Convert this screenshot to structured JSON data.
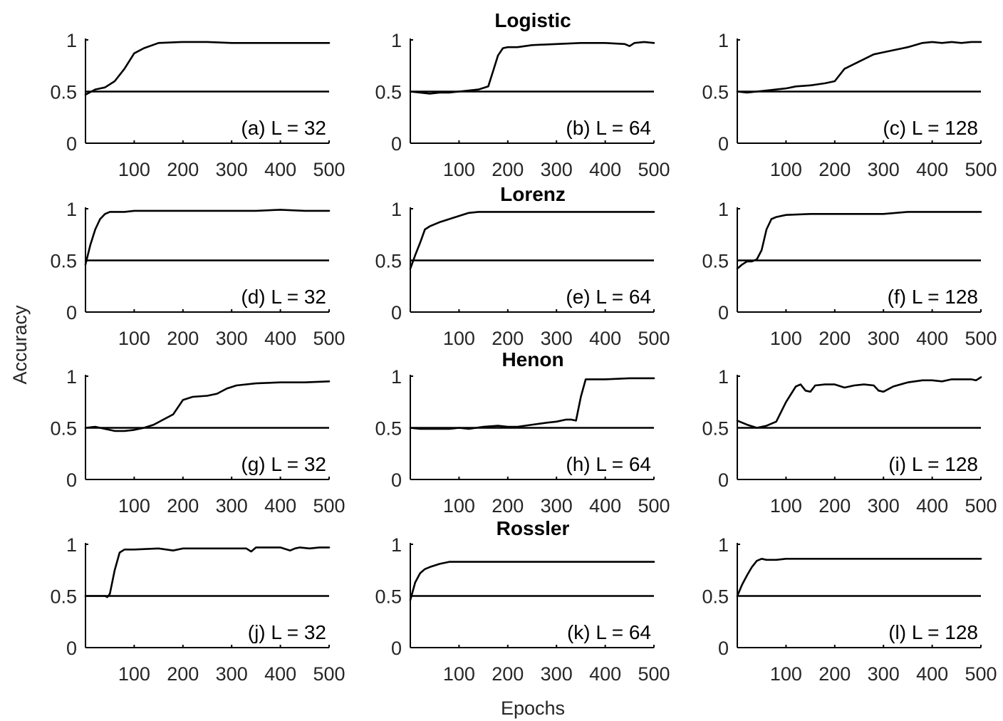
{
  "figure": {
    "xlabel": "Epochs",
    "ylabel": "Accuracy",
    "row_titles": [
      "Logistic",
      "Lorenz",
      "Henon",
      "Rossler"
    ],
    "line_color": "#000000"
  },
  "chart_data": [
    {
      "type": "line",
      "label": "(a) L = 32",
      "xlim": [
        0,
        500
      ],
      "ylim": [
        0,
        1
      ],
      "xticks": [
        100,
        200,
        300,
        400,
        500
      ],
      "yticks": [
        0,
        0.5,
        1
      ],
      "baseline": 0.5,
      "x": [
        0,
        20,
        40,
        60,
        80,
        100,
        120,
        150,
        200,
        250,
        300,
        350,
        400,
        450,
        500
      ],
      "y": [
        0.47,
        0.52,
        0.54,
        0.6,
        0.72,
        0.87,
        0.92,
        0.97,
        0.98,
        0.98,
        0.97,
        0.97,
        0.97,
        0.97,
        0.97
      ]
    },
    {
      "type": "line",
      "label": "(b) L = 64",
      "xlim": [
        0,
        500
      ],
      "ylim": [
        0,
        1
      ],
      "xticks": [
        100,
        200,
        300,
        400,
        500
      ],
      "yticks": [
        0,
        0.5,
        1
      ],
      "baseline": 0.5,
      "x": [
        0,
        20,
        40,
        60,
        80,
        100,
        120,
        140,
        160,
        170,
        180,
        190,
        200,
        220,
        250,
        300,
        350,
        400,
        440,
        450,
        460,
        480,
        500
      ],
      "y": [
        0.5,
        0.49,
        0.48,
        0.49,
        0.49,
        0.5,
        0.51,
        0.52,
        0.55,
        0.7,
        0.85,
        0.92,
        0.93,
        0.93,
        0.95,
        0.96,
        0.97,
        0.97,
        0.96,
        0.94,
        0.97,
        0.98,
        0.97
      ]
    },
    {
      "type": "line",
      "label": "(c) L = 128",
      "xlim": [
        0,
        500
      ],
      "ylim": [
        0,
        1
      ],
      "xticks": [
        100,
        200,
        300,
        400,
        500
      ],
      "yticks": [
        0,
        0.5,
        1
      ],
      "baseline": 0.5,
      "x": [
        0,
        20,
        40,
        60,
        80,
        100,
        120,
        150,
        180,
        200,
        220,
        250,
        280,
        300,
        350,
        380,
        400,
        420,
        440,
        460,
        480,
        500
      ],
      "y": [
        0.5,
        0.49,
        0.5,
        0.51,
        0.52,
        0.53,
        0.55,
        0.56,
        0.58,
        0.6,
        0.72,
        0.79,
        0.86,
        0.88,
        0.93,
        0.97,
        0.98,
        0.97,
        0.98,
        0.97,
        0.98,
        0.98
      ]
    },
    {
      "type": "line",
      "label": "(d) L = 32",
      "xlim": [
        0,
        500
      ],
      "ylim": [
        0,
        1
      ],
      "xticks": [
        100,
        200,
        300,
        400,
        500
      ],
      "yticks": [
        0,
        0.5,
        1
      ],
      "baseline": 0.5,
      "x": [
        0,
        10,
        20,
        30,
        40,
        50,
        60,
        80,
        100,
        150,
        200,
        250,
        300,
        350,
        400,
        450,
        500
      ],
      "y": [
        0.46,
        0.65,
        0.8,
        0.9,
        0.95,
        0.97,
        0.97,
        0.97,
        0.98,
        0.98,
        0.98,
        0.98,
        0.98,
        0.98,
        0.99,
        0.98,
        0.98
      ]
    },
    {
      "type": "line",
      "label": "(e) L = 64",
      "xlim": [
        0,
        500
      ],
      "ylim": [
        0,
        1
      ],
      "xticks": [
        100,
        200,
        300,
        400,
        500
      ],
      "yticks": [
        0,
        0.5,
        1
      ],
      "baseline": 0.5,
      "x": [
        0,
        10,
        20,
        30,
        40,
        60,
        80,
        100,
        120,
        140,
        160,
        200,
        250,
        300,
        350,
        400,
        450,
        500
      ],
      "y": [
        0.42,
        0.55,
        0.67,
        0.8,
        0.83,
        0.87,
        0.9,
        0.93,
        0.96,
        0.97,
        0.97,
        0.97,
        0.97,
        0.97,
        0.97,
        0.97,
        0.97,
        0.97
      ]
    },
    {
      "type": "line",
      "label": "(f) L = 128",
      "xlim": [
        0,
        500
      ],
      "ylim": [
        0,
        1
      ],
      "xticks": [
        100,
        200,
        300,
        400,
        500
      ],
      "yticks": [
        0,
        0.5,
        1
      ],
      "baseline": 0.5,
      "x": [
        0,
        10,
        20,
        30,
        40,
        50,
        60,
        70,
        80,
        100,
        150,
        200,
        250,
        300,
        350,
        400,
        450,
        500
      ],
      "y": [
        0.42,
        0.46,
        0.49,
        0.49,
        0.51,
        0.6,
        0.8,
        0.9,
        0.92,
        0.94,
        0.95,
        0.95,
        0.95,
        0.95,
        0.97,
        0.97,
        0.97,
        0.97
      ]
    },
    {
      "type": "line",
      "label": "(g) L = 32",
      "xlim": [
        0,
        500
      ],
      "ylim": [
        0,
        1
      ],
      "xticks": [
        100,
        200,
        300,
        400,
        500
      ],
      "yticks": [
        0,
        0.5,
        1
      ],
      "baseline": 0.5,
      "x": [
        0,
        20,
        40,
        60,
        80,
        100,
        120,
        140,
        160,
        180,
        200,
        220,
        250,
        270,
        290,
        310,
        350,
        400,
        450,
        500
      ],
      "y": [
        0.5,
        0.51,
        0.49,
        0.47,
        0.47,
        0.48,
        0.5,
        0.53,
        0.58,
        0.63,
        0.77,
        0.8,
        0.81,
        0.83,
        0.88,
        0.91,
        0.93,
        0.94,
        0.94,
        0.95
      ]
    },
    {
      "type": "line",
      "label": "(h) L = 64",
      "xlim": [
        0,
        500
      ],
      "ylim": [
        0,
        1
      ],
      "xticks": [
        100,
        200,
        300,
        400,
        500
      ],
      "yticks": [
        0,
        0.5,
        1
      ],
      "baseline": 0.5,
      "x": [
        0,
        20,
        40,
        60,
        80,
        100,
        120,
        150,
        180,
        200,
        220,
        250,
        280,
        300,
        320,
        330,
        340,
        350,
        360,
        380,
        400,
        450,
        500
      ],
      "y": [
        0.5,
        0.49,
        0.49,
        0.49,
        0.49,
        0.5,
        0.49,
        0.51,
        0.52,
        0.51,
        0.51,
        0.53,
        0.55,
        0.56,
        0.58,
        0.58,
        0.57,
        0.8,
        0.97,
        0.97,
        0.97,
        0.98,
        0.98
      ]
    },
    {
      "type": "line",
      "label": "(i) L = 128",
      "xlim": [
        0,
        500
      ],
      "ylim": [
        0,
        1
      ],
      "xticks": [
        100,
        200,
        300,
        400,
        500
      ],
      "yticks": [
        0,
        0.5,
        1
      ],
      "baseline": 0.5,
      "x": [
        0,
        20,
        40,
        60,
        80,
        100,
        120,
        130,
        140,
        150,
        160,
        180,
        200,
        220,
        240,
        260,
        280,
        290,
        300,
        320,
        350,
        380,
        400,
        420,
        440,
        460,
        480,
        490,
        500
      ],
      "y": [
        0.57,
        0.53,
        0.5,
        0.52,
        0.56,
        0.75,
        0.9,
        0.92,
        0.86,
        0.85,
        0.91,
        0.92,
        0.92,
        0.89,
        0.91,
        0.92,
        0.91,
        0.86,
        0.85,
        0.9,
        0.94,
        0.96,
        0.96,
        0.95,
        0.97,
        0.97,
        0.97,
        0.96,
        0.99
      ]
    },
    {
      "type": "line",
      "label": "(j) L = 32",
      "xlim": [
        0,
        500
      ],
      "ylim": [
        0,
        1
      ],
      "xticks": [
        100,
        200,
        300,
        400,
        500
      ],
      "yticks": [
        0,
        0.5,
        1
      ],
      "baseline": 0.5,
      "x": [
        0,
        20,
        40,
        45,
        50,
        60,
        70,
        80,
        100,
        150,
        180,
        200,
        250,
        300,
        330,
        340,
        350,
        360,
        400,
        420,
        430,
        440,
        460,
        480,
        500
      ],
      "y": [
        0.5,
        0.5,
        0.5,
        0.49,
        0.52,
        0.75,
        0.92,
        0.95,
        0.95,
        0.96,
        0.94,
        0.96,
        0.96,
        0.96,
        0.96,
        0.93,
        0.97,
        0.97,
        0.97,
        0.94,
        0.96,
        0.97,
        0.96,
        0.97,
        0.97
      ]
    },
    {
      "type": "line",
      "label": "(k) L = 64",
      "xlim": [
        0,
        500
      ],
      "ylim": [
        0,
        1
      ],
      "xticks": [
        100,
        200,
        300,
        400,
        500
      ],
      "yticks": [
        0,
        0.5,
        1
      ],
      "baseline": 0.5,
      "x": [
        0,
        10,
        20,
        30,
        40,
        60,
        80,
        100,
        150,
        200,
        300,
        400,
        500
      ],
      "y": [
        0.46,
        0.63,
        0.72,
        0.76,
        0.78,
        0.81,
        0.83,
        0.83,
        0.83,
        0.83,
        0.83,
        0.83,
        0.83
      ]
    },
    {
      "type": "line",
      "label": "(l) L = 128",
      "xlim": [
        0,
        500
      ],
      "ylim": [
        0,
        1
      ],
      "xticks": [
        100,
        200,
        300,
        400,
        500
      ],
      "yticks": [
        0,
        0.5,
        1
      ],
      "baseline": 0.5,
      "x": [
        0,
        10,
        20,
        30,
        40,
        50,
        60,
        80,
        100,
        150,
        200,
        300,
        400,
        500
      ],
      "y": [
        0.5,
        0.61,
        0.7,
        0.78,
        0.84,
        0.86,
        0.85,
        0.85,
        0.86,
        0.86,
        0.86,
        0.86,
        0.86,
        0.86
      ]
    }
  ]
}
